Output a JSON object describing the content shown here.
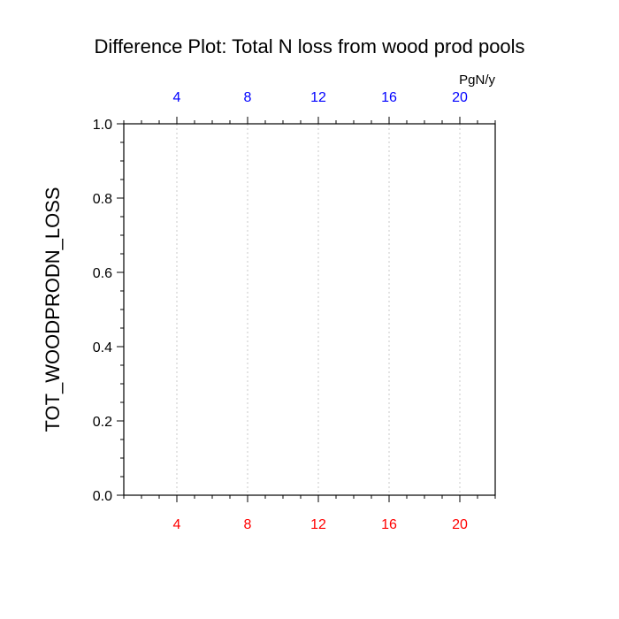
{
  "chart_data": {
    "type": "line",
    "title": "Difference Plot: Total N loss from wood prod pools",
    "top_axis_units": "PgN/y",
    "ylabel": "TOT_WOODPRODN_LOSS",
    "xlabel": "",
    "xlim": [
      1,
      22
    ],
    "ylim": [
      0.0,
      1.0
    ],
    "x_ticks": [
      4,
      8,
      12,
      16,
      20
    ],
    "x_minor_step": 1,
    "y_ticks": [
      "0.0",
      "0.2",
      "0.4",
      "0.6",
      "0.8",
      "1.0"
    ],
    "y_minor_step": 0.05,
    "grid": "vertical dotted at major x ticks",
    "series": [],
    "colors": {
      "bottom_tick_labels": "#ff0000",
      "top_tick_labels": "#0000ff",
      "axes": "#000000",
      "grid": "#c8c8c8"
    }
  }
}
